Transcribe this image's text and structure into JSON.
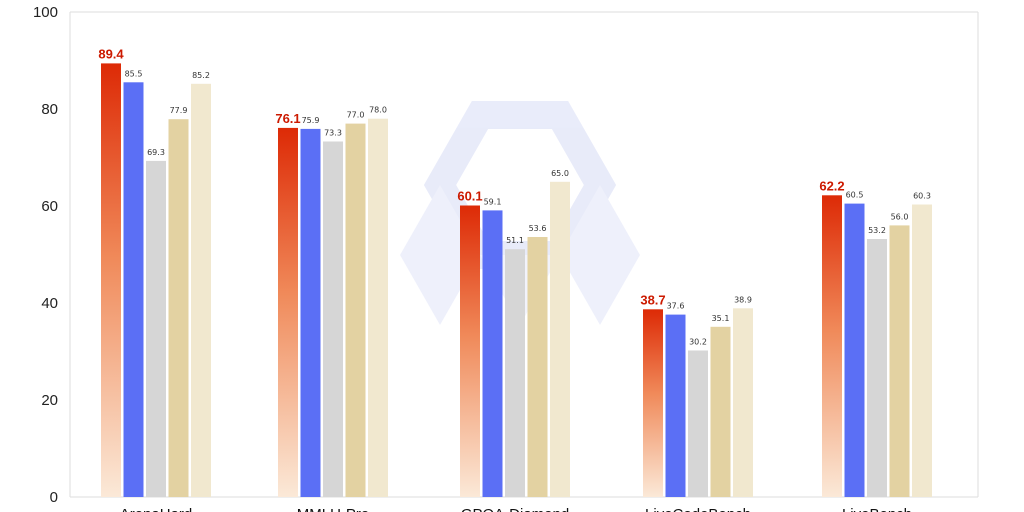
{
  "colors": {
    "highlight_top": "#dd2a06",
    "highlight_bottom": "#fbe9d8",
    "series2": "#5b6ff5",
    "series3": "#d6d6d6",
    "series4": "#e3d2a2",
    "series5": "#f1e8cf",
    "highlight_label": "#cc1a00",
    "gridline": "#dddddd",
    "watermark": "#d7dcf5"
  },
  "chart_data": {
    "type": "bar",
    "title": "",
    "xlabel": "",
    "ylabel": "",
    "ylim": [
      0,
      100
    ],
    "yticks": [
      "0",
      "20",
      "40",
      "60",
      "80",
      "100"
    ],
    "grid": false,
    "categories": [
      "ArenaHard",
      "MMLU-Pro",
      "GPQA-Diamond",
      "LiveCodeBench",
      "LiveBench"
    ],
    "series": [
      {
        "values": [
          89.4,
          76.1,
          60.1,
          38.7,
          62.2
        ]
      },
      {
        "values": [
          85.5,
          75.9,
          59.1,
          37.6,
          60.5
        ]
      },
      {
        "values": [
          69.3,
          73.3,
          51.1,
          30.2,
          53.2
        ]
      },
      {
        "values": [
          77.9,
          77.0,
          53.6,
          35.1,
          56.0
        ]
      },
      {
        "values": [
          85.2,
          78.0,
          65.0,
          38.9,
          60.3
        ]
      }
    ],
    "value_labels": [
      [
        "89.4",
        "85.5",
        "69.3",
        "77.9",
        "85.2"
      ],
      [
        "76.1",
        "75.9",
        "73.3",
        "77.0",
        "78.0"
      ],
      [
        "60.1",
        "59.1",
        "51.1",
        "53.6",
        "65.0"
      ],
      [
        "38.7",
        "37.6",
        "30.2",
        "35.1",
        "38.9"
      ],
      [
        "62.2",
        "60.5",
        "53.2",
        "56.0",
        "60.3"
      ]
    ]
  }
}
